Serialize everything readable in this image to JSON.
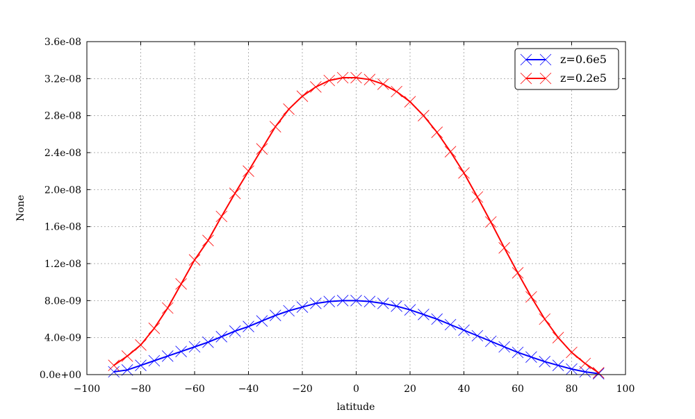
{
  "chart_data": {
    "type": "line",
    "title": "",
    "xlabel": "latitude",
    "ylabel": "None",
    "xlim": [
      -100,
      100
    ],
    "ylim": [
      0,
      3.6e-08
    ],
    "grid": true,
    "legend_placement": "top-right",
    "x_ticks": [
      "−100",
      "−80",
      "−60",
      "−40",
      "−20",
      "0",
      "20",
      "40",
      "60",
      "80",
      "100"
    ],
    "x_tick_values": [
      -100,
      -80,
      -60,
      -40,
      -20,
      0,
      20,
      40,
      60,
      80,
      100
    ],
    "y_ticks": [
      "0.0e+00",
      "4.0e-09",
      "8.0e-09",
      "1.2e-08",
      "1.6e-08",
      "2.0e-08",
      "2.4e-08",
      "2.8e-08",
      "3.2e-08",
      "3.6e-08"
    ],
    "y_tick_values": [
      0,
      4e-09,
      8e-09,
      1.2e-08,
      1.6e-08,
      2e-08,
      2.4e-08,
      2.8e-08,
      3.2e-08,
      3.6e-08
    ],
    "x": [
      -90,
      -85,
      -80,
      -75,
      -70,
      -65,
      -60,
      -55,
      -50,
      -45,
      -40,
      -35,
      -30,
      -25,
      -20,
      -15,
      -10,
      -5,
      0,
      5,
      10,
      15,
      20,
      25,
      30,
      35,
      40,
      45,
      50,
      55,
      60,
      65,
      70,
      75,
      80,
      85,
      90
    ],
    "y_scale": 1e-09,
    "series": [
      {
        "name": "z=0.6e5",
        "color": "#0000ff",
        "marker": "x",
        "values": [
          0.3,
          0.5,
          1.0,
          1.5,
          2.0,
          2.5,
          3.0,
          3.5,
          4.1,
          4.7,
          5.2,
          5.8,
          6.4,
          6.9,
          7.3,
          7.7,
          7.9,
          8.0,
          8.0,
          7.9,
          7.7,
          7.4,
          7.0,
          6.5,
          6.0,
          5.4,
          4.8,
          4.2,
          3.6,
          3.0,
          2.4,
          1.9,
          1.4,
          1.0,
          0.6,
          0.3,
          0.1
        ]
      },
      {
        "name": "z=0.2e5",
        "color": "#ff0000",
        "marker": "x",
        "values": [
          1.0,
          2.0,
          3.2,
          5.0,
          7.2,
          9.8,
          12.4,
          14.5,
          17.1,
          19.6,
          22.0,
          24.4,
          26.8,
          28.7,
          30.1,
          31.1,
          31.8,
          32.1,
          32.1,
          31.9,
          31.4,
          30.6,
          29.5,
          28.0,
          26.2,
          24.1,
          21.8,
          19.2,
          16.5,
          13.7,
          11.0,
          8.4,
          6.0,
          4.0,
          2.4,
          1.2,
          0.2
        ]
      }
    ]
  }
}
